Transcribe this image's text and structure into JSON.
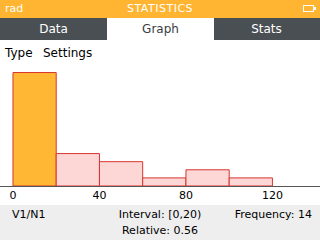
{
  "screen": {
    "status_bar": {
      "angle_unit": "rad",
      "title": "STATISTICS"
    },
    "tabs": [
      "Data",
      "Graph",
      "Stats"
    ],
    "selected_tab": "Graph",
    "toolbar": [
      "Type",
      "Settings"
    ],
    "footer": {
      "series": "V1/N1",
      "interval": "Interval: [0,20)",
      "frequency": "Frequency: 14",
      "relative": "Relative: 0.56"
    }
  },
  "chart_data": {
    "type": "histogram",
    "bins": [
      0,
      20,
      40,
      60,
      80,
      100,
      120
    ],
    "values": [
      14,
      4,
      3,
      1,
      2,
      1
    ],
    "colors": [
      "#ffb734",
      "#fdd6d6",
      "#fdd6d6",
      "#fdd6d6",
      "#fdd6d6",
      "#fdd6d6"
    ],
    "xlim": [
      -6,
      142
    ],
    "ylim": [
      0,
      15.3
    ],
    "xticks": [
      0,
      40,
      80,
      120
    ],
    "tick_labels": "x",
    "grid": false
  }
}
